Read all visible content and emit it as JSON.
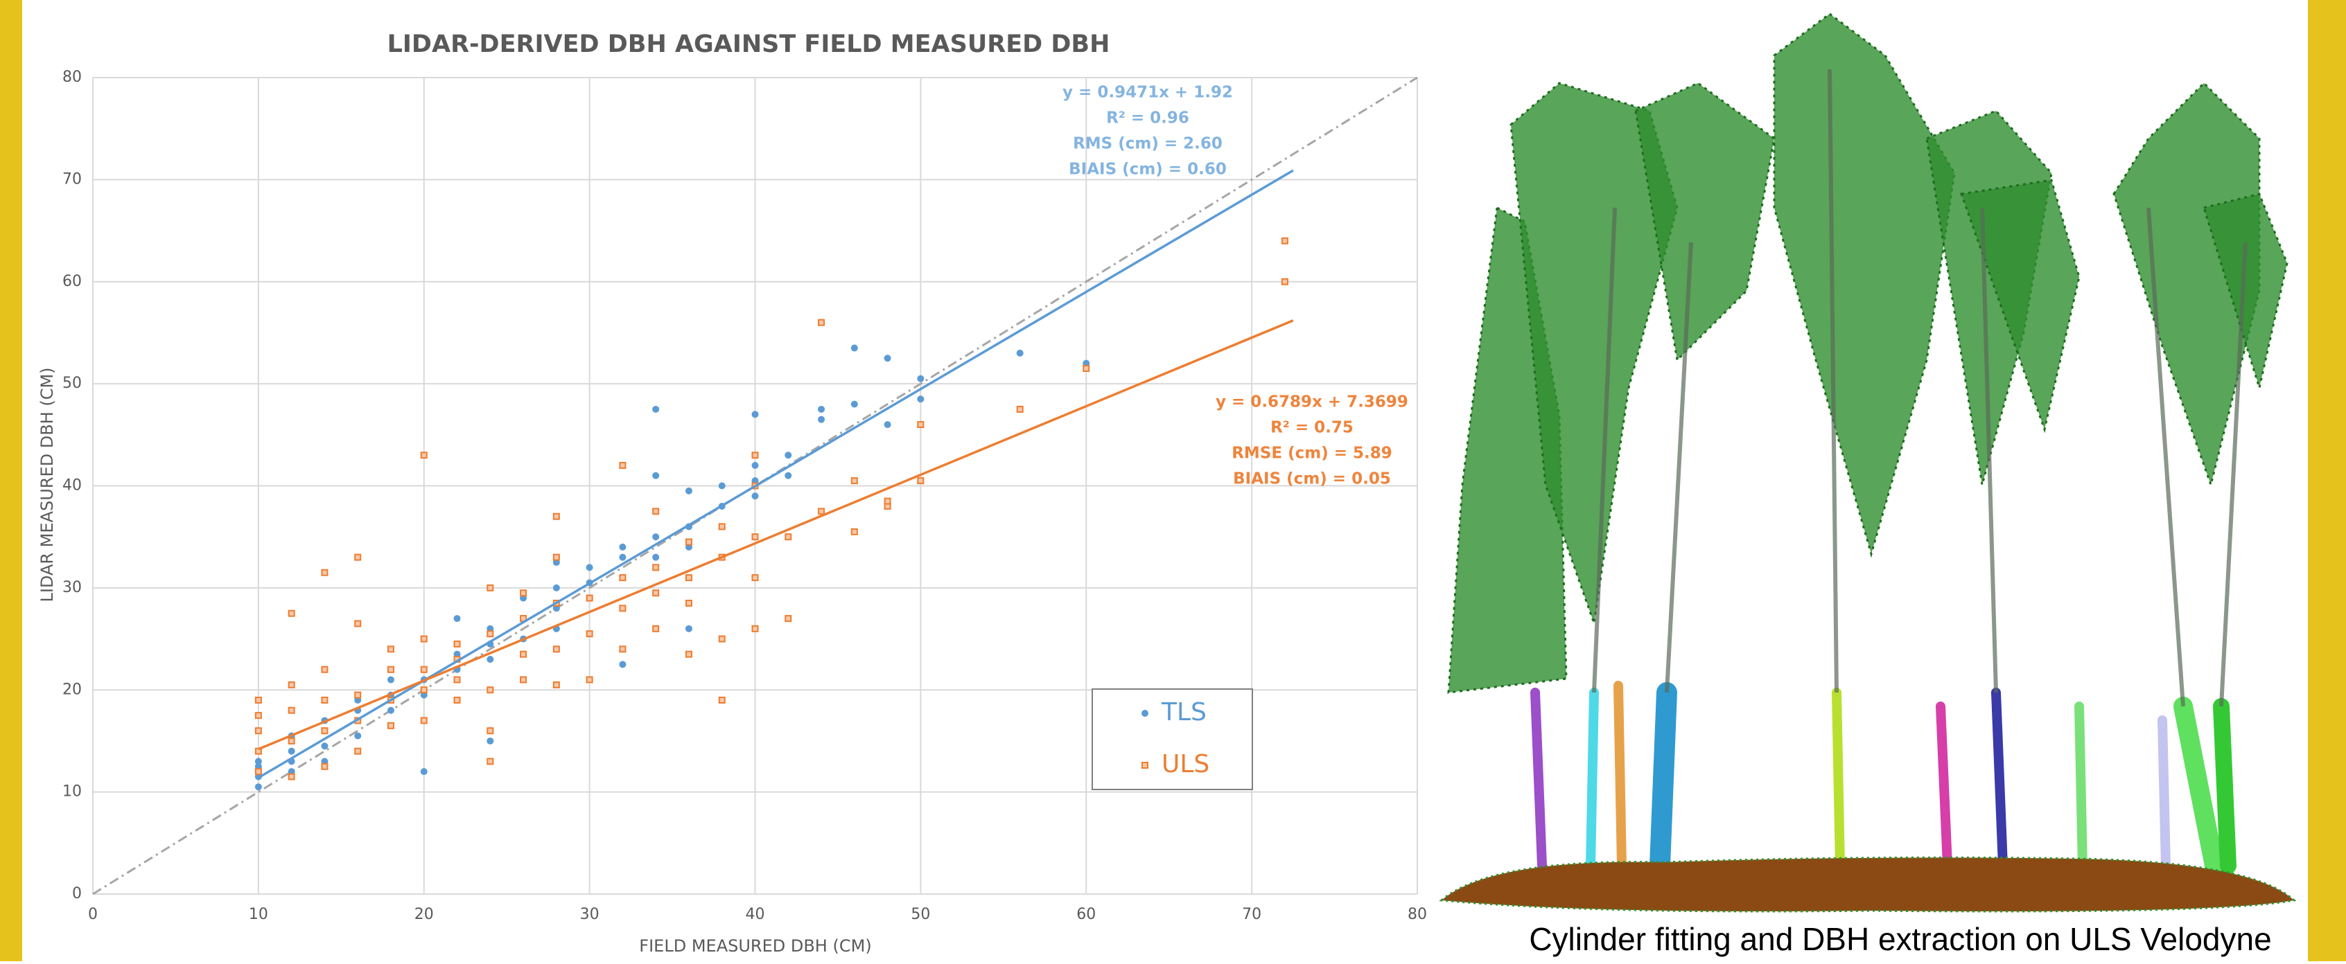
{
  "chart_data": {
    "type": "scatter",
    "title": "LIDAR-DERIVED DBH AGAINST FIELD MEASURED DBH",
    "x_label": "FIELD MEASURED DBH (CM)",
    "y_label": "LIDAR MEASURED DBH (CM)",
    "xlim": [
      0,
      80
    ],
    "xticks": [
      0,
      10,
      20,
      30,
      40,
      50,
      60,
      70,
      80
    ],
    "ylim": [
      0,
      80
    ],
    "yticks": [
      0,
      10,
      20,
      30,
      40,
      50,
      60,
      70,
      80
    ],
    "grid": true,
    "series": [
      {
        "name": "TLS",
        "color": "#5b9bd5",
        "marker": "circle",
        "x": [
          10,
          10,
          10,
          10,
          12,
          12,
          12,
          12,
          14,
          14,
          14,
          14,
          16,
          16,
          16,
          16,
          18,
          18,
          18,
          20,
          20,
          20,
          22,
          22,
          22,
          22,
          24,
          24,
          24,
          24,
          26,
          26,
          26,
          26,
          28,
          28,
          28,
          28,
          30,
          30,
          30,
          32,
          32,
          32,
          32,
          34,
          34,
          34,
          34,
          36,
          36,
          36,
          36,
          38,
          38,
          38,
          40,
          40,
          40,
          40,
          42,
          42,
          44,
          44,
          46,
          46,
          48,
          48,
          50,
          50,
          56,
          60
        ],
        "values": [
          10.5,
          11.5,
          12.5,
          13,
          12,
          13,
          14,
          15.5,
          13,
          14.5,
          16,
          17,
          15.5,
          17,
          18,
          19,
          18,
          19.5,
          21,
          12,
          19.5,
          21,
          21,
          22,
          23.5,
          27,
          15,
          23,
          24.5,
          26,
          21,
          25,
          27,
          29,
          26,
          28,
          30,
          32.5,
          29,
          30.5,
          32,
          22.5,
          31,
          33,
          34,
          33,
          35,
          41,
          47.5,
          26,
          34,
          36,
          39.5,
          36,
          38,
          40,
          39,
          40.5,
          42,
          47,
          43,
          41,
          47.5,
          46.5,
          48,
          53.5,
          46,
          52.5,
          48.5,
          50.5,
          53,
          52
        ]
      },
      {
        "name": "ULS",
        "color": "#ed7d31",
        "marker": "square",
        "x": [
          10,
          10,
          10,
          10,
          10,
          12,
          12,
          12,
          12,
          12,
          14,
          14,
          14,
          14,
          14,
          16,
          16,
          16,
          16,
          16,
          18,
          18,
          18,
          18,
          20,
          20,
          20,
          20,
          20,
          22,
          22,
          22,
          22,
          24,
          24,
          24,
          24,
          24,
          26,
          26,
          26,
          26,
          28,
          28,
          28,
          28,
          28,
          30,
          30,
          30,
          32,
          32,
          32,
          32,
          34,
          34,
          34,
          34,
          36,
          36,
          36,
          36,
          38,
          38,
          38,
          38,
          40,
          40,
          40,
          40,
          40,
          42,
          42,
          44,
          44,
          46,
          46,
          48,
          48,
          50,
          50,
          56,
          60,
          72,
          72
        ],
        "values": [
          12,
          14,
          16,
          17.5,
          19,
          11.5,
          15,
          18,
          20.5,
          27.5,
          12.5,
          16,
          19,
          22,
          31.5,
          14,
          17,
          19.5,
          26.5,
          33,
          16.5,
          19,
          22,
          24,
          17,
          20,
          22,
          25,
          43,
          19,
          21,
          23,
          24.5,
          13,
          16,
          20,
          25.5,
          30,
          21,
          23.5,
          27,
          29.5,
          20.5,
          24,
          28.5,
          33,
          37,
          21,
          25.5,
          29,
          24,
          28,
          31,
          42,
          26,
          29.5,
          32,
          37.5,
          23.5,
          28.5,
          31,
          34.5,
          19,
          25,
          33,
          36,
          26,
          31,
          35,
          40,
          43,
          27,
          35,
          37.5,
          56,
          35.5,
          40.5,
          38,
          38.5,
          40.5,
          46,
          47.5,
          51.5,
          60,
          64
        ]
      }
    ],
    "trendlines": [
      {
        "color": "#5b9bd5",
        "x": [
          10,
          72.5
        ],
        "y": [
          11.4,
          70.9
        ],
        "label_lines": [
          "y = 0.9471x + 1.92",
          "R² = 0.96",
          "RMS (cm) = 2.60",
          "BIAIS (cm) = 0.60"
        ]
      },
      {
        "color": "#ed7d31",
        "x": [
          10,
          72.5
        ],
        "y": [
          14.2,
          56.2
        ],
        "label_lines": [
          "y = 0.6789x + 7.3699",
          "R² = 0.75",
          "RMSE (cm) = 5.89",
          "BIAIS (cm) = 0.05"
        ]
      }
    ],
    "reference_line": {
      "color": "#a6a6a6",
      "x": [
        0,
        80
      ],
      "y": [
        0,
        80
      ]
    },
    "legend": "lower right"
  },
  "image_caption": "Cylinder fitting and DBH extraction on ULS Velodyne"
}
